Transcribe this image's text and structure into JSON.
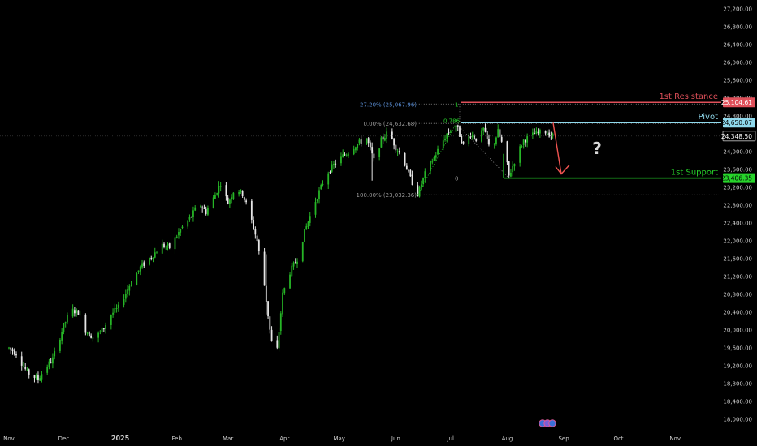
{
  "chart_data": {
    "type": "candlestick",
    "title": "",
    "y_axis": {
      "range": [
        17900,
        27250
      ],
      "ticks": [
        "27,200.00",
        "26,800.00",
        "26,400.00",
        "26,000.00",
        "25,600.00",
        "25,200.00",
        "24,800.00",
        "24,000.00",
        "23,600.00",
        "23,200.00",
        "22,800.00",
        "22,400.00",
        "22,000.00",
        "21,600.00",
        "21,200.00",
        "20,800.00",
        "20,400.00",
        "20,000.00",
        "19,600.00",
        "19,200.00",
        "18,800.00",
        "18,400.00",
        "18,000.00"
      ],
      "tick_values": [
        27200,
        26800,
        26400,
        26000,
        25600,
        25200,
        24800,
        24000,
        23600,
        23200,
        22800,
        22400,
        22000,
        21600,
        21200,
        20800,
        20400,
        20000,
        19600,
        19200,
        18800,
        18400,
        18000
      ]
    },
    "x_axis": {
      "labels": [
        "Nov",
        "Dec",
        "2025",
        "Feb",
        "Mar",
        "Apr",
        "May",
        "Jun",
        "Jul",
        "Aug",
        "Sep",
        "Oct",
        "Nov"
      ],
      "label_days": [
        0,
        30,
        61,
        92,
        120,
        151,
        181,
        212,
        242,
        273,
        304,
        334,
        365
      ]
    },
    "price_start": 19600,
    "colors": {
      "up": "#26b526",
      "down": "#e6e6e6",
      "resistance": "#e0505a",
      "pivot": "#8fd9ec",
      "support": "#27d42b",
      "fib": "#9a9a9a",
      "arrow": "#ef5350",
      "bg": "#000000"
    },
    "levels": [
      {
        "name": "1st Resistance",
        "label": "1st Resistance",
        "value": 25104.61,
        "value_label": "25,104.61"
      },
      {
        "name": "Pivot",
        "label": "Pivot",
        "value": 24650.07,
        "value_label": "24,650.07"
      },
      {
        "name": "1st Support",
        "label": "1st Support",
        "value": 23406.35,
        "value_label": "23,406.35"
      }
    ],
    "current_price": {
      "value": 24348.5,
      "value_label": "24,348.50"
    },
    "fib_labels": {
      "ext": "-27.20% (25,067.96)",
      "top": "0.00% (24,632.68)",
      "bottom": "100.00% (23,032.36)",
      "r786": "0.786",
      "one": "1",
      "zero": "0"
    },
    "fib_values": {
      "ext": 25067.96,
      "top": 24632.68,
      "bottom": 23032.36,
      "zero": 23406.35
    },
    "annotation": "?",
    "anchors": [
      {
        "d": 0,
        "v": 19600
      },
      {
        "d": 4,
        "v": 19480
      },
      {
        "d": 10,
        "v": 19050
      },
      {
        "d": 16,
        "v": 18900
      },
      {
        "d": 20,
        "v": 19150
      },
      {
        "d": 24,
        "v": 19350
      },
      {
        "d": 30,
        "v": 20100
      },
      {
        "d": 34,
        "v": 20450
      },
      {
        "d": 38,
        "v": 20400
      },
      {
        "d": 42,
        "v": 20000
      },
      {
        "d": 47,
        "v": 19800
      },
      {
        "d": 52,
        "v": 20050
      },
      {
        "d": 56,
        "v": 20350
      },
      {
        "d": 60,
        "v": 20500
      },
      {
        "d": 66,
        "v": 21000
      },
      {
        "d": 72,
        "v": 21400
      },
      {
        "d": 78,
        "v": 21650
      },
      {
        "d": 84,
        "v": 21900
      },
      {
        "d": 88,
        "v": 21850
      },
      {
        "d": 94,
        "v": 22250
      },
      {
        "d": 100,
        "v": 22550
      },
      {
        "d": 104,
        "v": 22850
      },
      {
        "d": 108,
        "v": 22650
      },
      {
        "d": 112,
        "v": 22950
      },
      {
        "d": 116,
        "v": 23300
      },
      {
        "d": 120,
        "v": 22850
      },
      {
        "d": 124,
        "v": 23200
      },
      {
        "d": 128,
        "v": 23050
      },
      {
        "d": 132,
        "v": 22600
      },
      {
        "d": 136,
        "v": 22000
      },
      {
        "d": 140,
        "v": 21000
      },
      {
        "d": 143,
        "v": 20000
      },
      {
        "d": 146,
        "v": 19150
      },
      {
        "d": 150,
        "v": 20800
      },
      {
        "d": 154,
        "v": 21300
      },
      {
        "d": 158,
        "v": 21600
      },
      {
        "d": 162,
        "v": 22200
      },
      {
        "d": 168,
        "v": 22900
      },
      {
        "d": 174,
        "v": 23500
      },
      {
        "d": 180,
        "v": 23800
      },
      {
        "d": 186,
        "v": 24000
      },
      {
        "d": 190,
        "v": 24150
      },
      {
        "d": 196,
        "v": 24300
      },
      {
        "d": 200,
        "v": 23800
      },
      {
        "d": 204,
        "v": 24250
      },
      {
        "d": 208,
        "v": 24450
      },
      {
        "d": 212,
        "v": 24100
      },
      {
        "d": 216,
        "v": 23850
      },
      {
        "d": 220,
        "v": 23400
      },
      {
        "d": 224,
        "v": 23050
      },
      {
        "d": 228,
        "v": 23500
      },
      {
        "d": 232,
        "v": 23800
      },
      {
        "d": 236,
        "v": 24100
      },
      {
        "d": 240,
        "v": 24400
      },
      {
        "d": 245,
        "v": 24600
      },
      {
        "d": 249,
        "v": 24150
      },
      {
        "d": 253,
        "v": 24400
      },
      {
        "d": 257,
        "v": 24250
      },
      {
        "d": 260,
        "v": 24500
      },
      {
        "d": 264,
        "v": 24000
      },
      {
        "d": 268,
        "v": 24450
      },
      {
        "d": 272,
        "v": 23950
      },
      {
        "d": 274,
        "v": 23450
      },
      {
        "d": 278,
        "v": 23900
      },
      {
        "d": 282,
        "v": 24250
      },
      {
        "d": 288,
        "v": 24400
      },
      {
        "d": 294,
        "v": 24450
      },
      {
        "d": 298,
        "v": 24350
      }
    ]
  }
}
